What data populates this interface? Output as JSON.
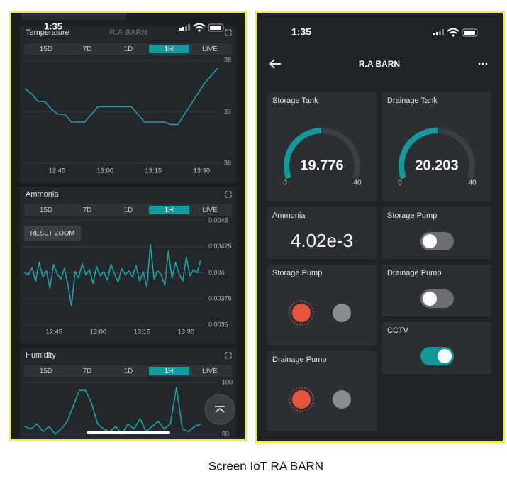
{
  "left_screen": {
    "status_time": "1:35",
    "header_title": "R.A BARN",
    "ranges": [
      "15D",
      "7D",
      "1D",
      "1H",
      "LIVE"
    ],
    "selected_range": "1H",
    "charts": [
      {
        "type": "line",
        "title": "Temperature",
        "color": "#1aa3a8",
        "xlim": [
          0,
          60
        ],
        "xticks": [
          {
            "value": 10,
            "label": "12:45"
          },
          {
            "value": 25,
            "label": "13:00"
          },
          {
            "value": 40,
            "label": "13:15"
          },
          {
            "value": 55,
            "label": "13:30"
          }
        ],
        "ylim": [
          36,
          38
        ],
        "yticks": [
          36,
          37,
          38
        ],
        "values": [
          37.45,
          37.35,
          37.2,
          37.2,
          37.05,
          36.95,
          36.95,
          36.8,
          36.8,
          36.8,
          36.95,
          37.1,
          37.1,
          37.1,
          37.1,
          37.1,
          37.1,
          36.95,
          36.8,
          36.8,
          36.8,
          36.8,
          36.75,
          36.75,
          36.95,
          37.15,
          37.35,
          37.55,
          37.7,
          37.85
        ]
      },
      {
        "type": "line",
        "title": "Ammonia",
        "color": "#1aa3a8",
        "reset_zoom": "RESET ZOOM",
        "xlim": [
          0,
          60
        ],
        "xticks": [
          {
            "value": 10,
            "label": "12:45"
          },
          {
            "value": 25,
            "label": "13:00"
          },
          {
            "value": 40,
            "label": "13:15"
          },
          {
            "value": 55,
            "label": "13:30"
          }
        ],
        "ylim": [
          0.0035,
          0.0045
        ],
        "yticks": [
          0.0035,
          0.00375,
          0.004,
          0.00425,
          0.0045
        ],
        "values": [
          0.004,
          0.00398,
          0.00405,
          0.00392,
          0.0041,
          0.00396,
          0.00402,
          0.00385,
          0.00408,
          0.00399,
          0.00394,
          0.00404,
          0.00389,
          0.00368,
          0.00401,
          0.00395,
          0.00409,
          0.00398,
          0.00403,
          0.0039,
          0.00406,
          0.00397,
          0.00401,
          0.00393,
          0.00408,
          0.00399,
          0.00391,
          0.00404,
          0.00398,
          0.00402,
          0.00396,
          0.00407,
          0.00392,
          0.00401,
          0.00386,
          0.00427,
          0.00394,
          0.00402,
          0.00398,
          0.00388,
          0.00421,
          0.00395,
          0.0041,
          0.00399,
          0.00392,
          0.00415,
          0.00397,
          0.00403,
          0.004,
          0.00412
        ]
      },
      {
        "type": "line",
        "title": "Humidity",
        "color": "#1aa3a8",
        "ylim": [
          80,
          100
        ],
        "yticks": [
          80,
          100
        ],
        "values": [
          83,
          82,
          84,
          81,
          83,
          80,
          82,
          85,
          91,
          97,
          97,
          92,
          84,
          82,
          81,
          83,
          80,
          84,
          82,
          86,
          81,
          83,
          85,
          82,
          84,
          98,
          82,
          81,
          83,
          84
        ]
      }
    ]
  },
  "right_screen": {
    "status_time": "1:35",
    "title": "R.A BARN",
    "widgets": [
      {
        "type": "gauge",
        "title": "Storage Tank",
        "value": 19.776,
        "min": 0,
        "max": 40
      },
      {
        "type": "gauge",
        "title": "Drainage Tank",
        "value": 20.203,
        "min": 0,
        "max": 40
      },
      {
        "type": "value",
        "title": "Ammonia",
        "text": "4.02e-3"
      },
      {
        "type": "switch",
        "title": "Storage Pump",
        "on": false
      },
      {
        "type": "leds",
        "title": "Storage Pump",
        "leds": [
          "#e8553f",
          "#8a8d90"
        ]
      },
      {
        "type": "switch",
        "title": "Drainage Pump",
        "on": false
      },
      {
        "type": "switch",
        "title": "CCTV",
        "on": true
      },
      {
        "type": "leds",
        "title": "Drainage Pump",
        "leds": [
          "#e8553f",
          "#8a8d90"
        ]
      }
    ]
  },
  "caption": "Screen IoT RA BARN"
}
